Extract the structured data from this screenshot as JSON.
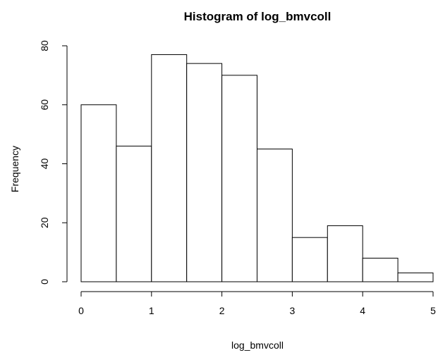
{
  "chart_data": {
    "type": "bar",
    "title": "Histogram of log_bmvcoll",
    "xlabel": "log_bmvcoll",
    "ylabel": "Frequency",
    "bins": [
      {
        "x0": 0.0,
        "x1": 0.5,
        "count": 60
      },
      {
        "x0": 0.5,
        "x1": 1.0,
        "count": 46
      },
      {
        "x0": 1.0,
        "x1": 1.5,
        "count": 77
      },
      {
        "x0": 1.5,
        "x1": 2.0,
        "count": 74
      },
      {
        "x0": 2.0,
        "x1": 2.5,
        "count": 70
      },
      {
        "x0": 2.5,
        "x1": 3.0,
        "count": 45
      },
      {
        "x0": 3.0,
        "x1": 3.5,
        "count": 15
      },
      {
        "x0": 3.5,
        "x1": 4.0,
        "count": 19
      },
      {
        "x0": 4.0,
        "x1": 4.5,
        "count": 8
      },
      {
        "x0": 4.5,
        "x1": 5.0,
        "count": 3
      }
    ],
    "xlim": [
      0,
      5
    ],
    "ylim": [
      0,
      80
    ],
    "xticks": [
      "0",
      "1",
      "2",
      "3",
      "4",
      "5"
    ],
    "yticks": [
      "0",
      "20",
      "40",
      "60",
      "80"
    ],
    "grid": false,
    "bar_fill": "#ffffff",
    "bar_stroke": "#000000"
  }
}
